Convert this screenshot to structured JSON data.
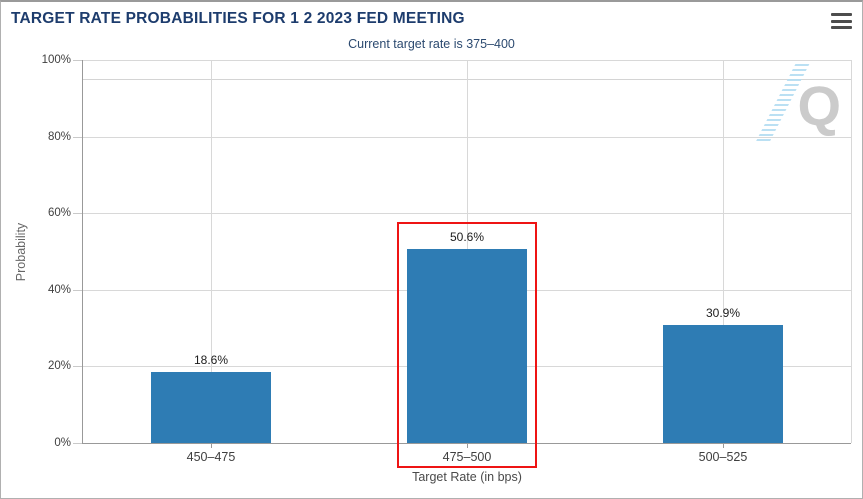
{
  "header": {
    "menu_icon": "hamburger-menu-icon"
  },
  "watermark": {
    "letter": "Q"
  },
  "chart_data": {
    "type": "bar",
    "title": "TARGET RATE PROBABILITIES FOR 1 2 2023 FED MEETING",
    "subtitle": "Current target rate is 375–400",
    "categories": [
      "450–475",
      "475–500",
      "500–525"
    ],
    "values": [
      18.6,
      50.6,
      30.9
    ],
    "value_labels": [
      "18.6%",
      "50.6%",
      "30.9%"
    ],
    "highlighted_category": "475–500",
    "xlabel": "Target Rate (in bps)",
    "ylabel": "Probability",
    "ylim": [
      0,
      100
    ],
    "y_tick_values": [
      0,
      20,
      40,
      60,
      80,
      100
    ],
    "y_tick_labels": [
      "0%",
      "20%",
      "40%",
      "60%",
      "80%",
      "100%"
    ],
    "grid": true,
    "legend_position": "none",
    "colors": {
      "bar": "#2e7cb4",
      "highlight_box": "#ee1414",
      "title": "#1d3c6d",
      "subtitle": "#2c4a70",
      "tick_labels": "#3f3f3f",
      "value_labels": "#1c1c1c",
      "y_axis_title": "#666666",
      "x_axis_title": "#4a4a4a",
      "gridline": "#d8d8d8",
      "axis_line": "#999999",
      "watermark_gray": "#cbcbcb",
      "watermark_blue": "#b3ddf2"
    }
  }
}
